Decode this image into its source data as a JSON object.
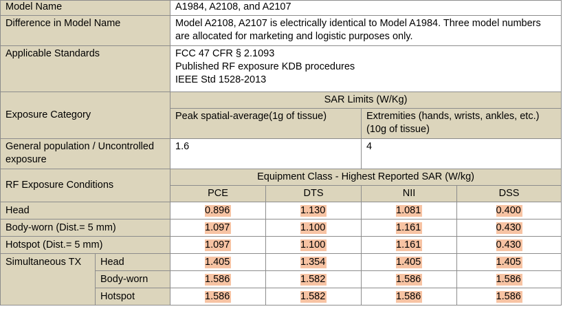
{
  "rows": {
    "model_name": {
      "label": "Model Name",
      "value": "A1984, A2108, and A2107"
    },
    "difference": {
      "label": "Difference in Model Name",
      "value": "Model A2108, A2107 is electrically identical to Model A1984.  Three model numbers are allocated for marketing and logistic purposes only."
    },
    "standards": {
      "label": "Applicable Standards",
      "values": [
        "FCC 47 CFR § 2.1093",
        "Published RF exposure KDB procedures",
        "IEEE Std 1528-2013"
      ]
    },
    "exposure": {
      "label": "Exposure Category",
      "sar_limits_header": "SAR Limits (W/Kg)",
      "peak": "Peak spatial-average(1g of tissue)",
      "extremities": "Extremities (hands, wrists, ankles, etc.) (10g of tissue)"
    },
    "general": {
      "label": "General population / Uncontrolled exposure",
      "peak_value": "1.6",
      "extremities_value": "4"
    },
    "rf_conditions": {
      "label": "RF Exposure Conditions",
      "header": "Equipment Class - Highest Reported SAR (W/kg)",
      "classes": [
        "PCE",
        "DTS",
        "NII",
        "DSS"
      ]
    },
    "results": [
      {
        "label": "Head",
        "values": [
          "0.896",
          "1.130",
          "1.081",
          "0.400"
        ]
      },
      {
        "label": "Body-worn (Dist.= 5 mm)",
        "values": [
          "1.097",
          "1.100",
          "1.161",
          "0.430"
        ]
      },
      {
        "label": "Hotspot (Dist.= 5 mm)",
        "values": [
          "1.097",
          "1.100",
          "1.161",
          "0.430"
        ]
      }
    ],
    "simultaneous": {
      "label": "Simultaneous TX",
      "rows": [
        {
          "label": "Head",
          "values": [
            "1.405",
            "1.354",
            "1.405",
            "1.405"
          ]
        },
        {
          "label": "Body-worn",
          "values": [
            "1.586",
            "1.582",
            "1.586",
            "1.586"
          ]
        },
        {
          "label": "Hotspot",
          "values": [
            "1.586",
            "1.582",
            "1.586",
            "1.586"
          ]
        }
      ]
    }
  },
  "colors": {
    "label_bg": "#dcd5bc",
    "highlight": "#f7c3a3",
    "border": "#8c8c8c"
  }
}
